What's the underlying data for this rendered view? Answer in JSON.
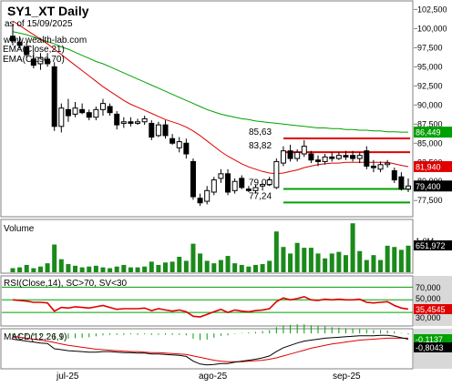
{
  "header": {
    "title": "SY1_XT Daily",
    "date_line": "as of 15/09/2025",
    "watermark": "www.wealth-lab.com",
    "ema21_label": "EMA(Close,21)",
    "ema70_label": "EMA(Close,70)"
  },
  "price_axis": {
    "ticks": [
      "102,500",
      "100,000",
      "97,500",
      "95,000",
      "92,500",
      "90,000",
      "87,500",
      "85,000",
      "82,500",
      "80,000",
      "77,500"
    ],
    "ylim": [
      75.5,
      103.5
    ],
    "badges": [
      {
        "key": "ema70",
        "label": "86,449",
        "value": 86.449,
        "color": "#00a000"
      },
      {
        "key": "ema21",
        "label": "81,940",
        "value": 81.94,
        "color": "#e00000"
      },
      {
        "key": "close",
        "label": "79,400",
        "value": 79.4,
        "color": "#000000"
      }
    ]
  },
  "levels": [
    {
      "label": "85,63",
      "value": 85.63,
      "color": "#e00000"
    },
    {
      "label": "83,82",
      "value": 83.82,
      "color": "#e00000"
    },
    {
      "label": "79,02",
      "value": 79.02,
      "color": "#00a000"
    },
    {
      "label": "77,24",
      "value": 77.24,
      "color": "#00a000"
    }
  ],
  "volume_panel": {
    "title": "Volume",
    "tick": "1,0M",
    "badge": "651,972"
  },
  "rsi_panel": {
    "title": "RSI(Close,14), SC>70, SV<30",
    "ticks": [
      "70,000",
      "50,000",
      "30,000"
    ],
    "badge": "35,4545"
  },
  "macd_panel": {
    "title": "MACD(12,26,9)",
    "badge1": "-0,1137",
    "badge2": "-0,8043"
  },
  "x_axis": {
    "labels": [
      "jul-25",
      "ago-25",
      "sep-25"
    ]
  },
  "colors": {
    "up": "#00a000",
    "down": "#e00000",
    "candle": "#000000",
    "volume": "#1a8a1a",
    "panel_border": "#808080",
    "badge_bg": "#000000"
  },
  "chart_data": {
    "type": "candlestick",
    "title": "SY1_XT Daily",
    "x_labels": [
      "jul-25",
      "ago-25",
      "sep-25"
    ],
    "ylim": [
      75.5,
      103.5
    ],
    "candles": [
      {
        "o": 99.0,
        "h": 100.5,
        "l": 97.8,
        "c": 98.4
      },
      {
        "o": 98.2,
        "h": 99.0,
        "l": 97.4,
        "c": 97.8
      },
      {
        "o": 97.6,
        "h": 98.2,
        "l": 96.2,
        "c": 96.6
      },
      {
        "o": 96.0,
        "h": 97.0,
        "l": 94.8,
        "c": 95.2
      },
      {
        "o": 95.4,
        "h": 96.8,
        "l": 94.6,
        "c": 96.2
      },
      {
        "o": 96.0,
        "h": 96.8,
        "l": 95.0,
        "c": 95.4
      },
      {
        "o": 95.0,
        "h": 95.6,
        "l": 86.6,
        "c": 87.2
      },
      {
        "o": 87.2,
        "h": 90.2,
        "l": 86.4,
        "c": 89.6
      },
      {
        "o": 89.4,
        "h": 90.8,
        "l": 87.8,
        "c": 88.6
      },
      {
        "o": 88.8,
        "h": 90.4,
        "l": 88.4,
        "c": 89.6
      },
      {
        "o": 89.4,
        "h": 90.2,
        "l": 88.8,
        "c": 89.0
      },
      {
        "o": 89.0,
        "h": 89.4,
        "l": 88.0,
        "c": 88.4
      },
      {
        "o": 88.4,
        "h": 89.8,
        "l": 88.0,
        "c": 89.4
      },
      {
        "o": 89.4,
        "h": 90.8,
        "l": 88.6,
        "c": 90.2
      },
      {
        "o": 89.8,
        "h": 90.2,
        "l": 88.6,
        "c": 89.0
      },
      {
        "o": 88.8,
        "h": 89.2,
        "l": 86.8,
        "c": 87.4
      },
      {
        "o": 87.6,
        "h": 88.4,
        "l": 87.0,
        "c": 87.8
      },
      {
        "o": 87.8,
        "h": 88.4,
        "l": 87.2,
        "c": 87.6
      },
      {
        "o": 87.6,
        "h": 88.2,
        "l": 87.4,
        "c": 87.8
      },
      {
        "o": 87.8,
        "h": 88.6,
        "l": 87.4,
        "c": 88.2
      },
      {
        "o": 87.6,
        "h": 88.0,
        "l": 85.4,
        "c": 85.8
      },
      {
        "o": 86.0,
        "h": 87.8,
        "l": 85.8,
        "c": 87.4
      },
      {
        "o": 87.4,
        "h": 88.0,
        "l": 85.6,
        "c": 86.0
      },
      {
        "o": 85.6,
        "h": 86.2,
        "l": 84.8,
        "c": 85.0
      },
      {
        "o": 84.4,
        "h": 85.8,
        "l": 83.8,
        "c": 85.2
      },
      {
        "o": 85.0,
        "h": 85.6,
        "l": 83.0,
        "c": 83.6
      },
      {
        "o": 82.6,
        "h": 83.0,
        "l": 77.6,
        "c": 78.0
      },
      {
        "o": 77.8,
        "h": 78.4,
        "l": 76.8,
        "c": 77.2
      },
      {
        "o": 77.4,
        "h": 79.4,
        "l": 77.0,
        "c": 78.8
      },
      {
        "o": 78.6,
        "h": 80.6,
        "l": 78.2,
        "c": 80.2
      },
      {
        "o": 80.4,
        "h": 81.6,
        "l": 79.8,
        "c": 81.0
      },
      {
        "o": 81.0,
        "h": 81.6,
        "l": 78.2,
        "c": 78.6
      },
      {
        "o": 78.8,
        "h": 80.4,
        "l": 78.4,
        "c": 80.0
      },
      {
        "o": 80.4,
        "h": 80.8,
        "l": 79.0,
        "c": 79.2
      },
      {
        "o": 79.0,
        "h": 79.4,
        "l": 78.6,
        "c": 78.8
      },
      {
        "o": 78.8,
        "h": 79.6,
        "l": 78.4,
        "c": 79.2
      },
      {
        "o": 79.4,
        "h": 79.8,
        "l": 78.8,
        "c": 79.6
      },
      {
        "o": 79.6,
        "h": 80.6,
        "l": 79.4,
        "c": 80.2
      },
      {
        "o": 79.2,
        "h": 83.0,
        "l": 79.0,
        "c": 82.6
      },
      {
        "o": 82.4,
        "h": 84.6,
        "l": 82.0,
        "c": 84.0
      },
      {
        "o": 84.0,
        "h": 84.8,
        "l": 82.6,
        "c": 83.0
      },
      {
        "o": 83.0,
        "h": 84.2,
        "l": 82.6,
        "c": 83.8
      },
      {
        "o": 83.6,
        "h": 85.4,
        "l": 83.2,
        "c": 84.6
      },
      {
        "o": 83.6,
        "h": 84.0,
        "l": 82.4,
        "c": 82.8
      },
      {
        "o": 82.8,
        "h": 83.4,
        "l": 82.0,
        "c": 82.6
      },
      {
        "o": 82.6,
        "h": 83.6,
        "l": 82.2,
        "c": 83.2
      },
      {
        "o": 83.2,
        "h": 83.8,
        "l": 82.6,
        "c": 83.0
      },
      {
        "o": 83.0,
        "h": 83.8,
        "l": 82.8,
        "c": 83.4
      },
      {
        "o": 83.4,
        "h": 84.0,
        "l": 82.8,
        "c": 83.2
      },
      {
        "o": 83.4,
        "h": 84.0,
        "l": 82.6,
        "c": 83.0
      },
      {
        "o": 83.0,
        "h": 83.8,
        "l": 82.4,
        "c": 83.4
      },
      {
        "o": 84.0,
        "h": 84.6,
        "l": 81.6,
        "c": 82.0
      },
      {
        "o": 82.0,
        "h": 82.8,
        "l": 81.2,
        "c": 81.8
      },
      {
        "o": 81.6,
        "h": 82.6,
        "l": 81.2,
        "c": 82.2
      },
      {
        "o": 82.2,
        "h": 82.8,
        "l": 81.8,
        "c": 82.4
      },
      {
        "o": 81.4,
        "h": 81.8,
        "l": 79.8,
        "c": 80.2
      },
      {
        "o": 80.6,
        "h": 81.2,
        "l": 78.8,
        "c": 79.0
      },
      {
        "o": 79.0,
        "h": 80.4,
        "l": 78.6,
        "c": 79.4
      }
    ],
    "ema21": [
      101.0,
      100.4,
      99.8,
      99.2,
      98.6,
      98.0,
      97.3,
      96.6,
      95.9,
      95.2,
      94.5,
      93.8,
      93.1,
      92.4,
      91.8,
      91.2,
      90.6,
      90.1,
      89.7,
      89.3,
      88.9,
      88.5,
      88.1,
      87.8,
      87.5,
      87.1,
      86.6,
      86.0,
      85.3,
      84.6,
      83.9,
      83.3,
      82.8,
      82.3,
      81.9,
      81.6,
      81.3,
      81.1,
      81.0,
      81.1,
      81.3,
      81.5,
      81.8,
      82.0,
      82.2,
      82.3,
      82.4,
      82.4,
      82.5,
      82.5,
      82.5,
      82.5,
      82.5,
      82.5,
      82.5,
      82.3,
      82.1,
      81.94
    ],
    "ema70": [
      99.6,
      99.4,
      99.2,
      98.9,
      98.6,
      98.3,
      98.0,
      97.6,
      97.3,
      96.9,
      96.5,
      96.1,
      95.7,
      95.4,
      95.0,
      94.6,
      94.2,
      93.8,
      93.4,
      93.0,
      92.6,
      92.2,
      91.8,
      91.4,
      91.0,
      90.6,
      90.2,
      89.8,
      89.4,
      89.1,
      88.8,
      88.6,
      88.4,
      88.2,
      88.1,
      87.9,
      87.8,
      87.7,
      87.6,
      87.5,
      87.4,
      87.3,
      87.2,
      87.1,
      87.0,
      87.0,
      86.9,
      86.9,
      86.8,
      86.8,
      86.7,
      86.7,
      86.6,
      86.6,
      86.5,
      86.5,
      86.45,
      86.449
    ],
    "volume": [
      0.1,
      0.12,
      0.18,
      0.1,
      0.14,
      0.22,
      0.68,
      0.32,
      0.2,
      0.16,
      0.12,
      0.14,
      0.16,
      0.12,
      0.1,
      0.14,
      0.18,
      0.12,
      0.12,
      0.14,
      0.26,
      0.18,
      0.24,
      0.26,
      0.38,
      0.28,
      0.7,
      0.46,
      0.28,
      0.22,
      0.3,
      0.4,
      0.22,
      0.18,
      0.14,
      0.18,
      0.2,
      0.28,
      1.0,
      0.62,
      0.46,
      0.72,
      0.6,
      0.6,
      0.46,
      0.34,
      0.46,
      0.5,
      0.42,
      1.2,
      0.52,
      0.3,
      0.42,
      0.3,
      0.65,
      0.62,
      0.55,
      0.651972
    ],
    "rsi": [
      50,
      49,
      48,
      46,
      46,
      45,
      32,
      38,
      37,
      39,
      38,
      37,
      39,
      41,
      38,
      35,
      36,
      36,
      36,
      37,
      33,
      36,
      34,
      32,
      34,
      31,
      24,
      23,
      27,
      31,
      35,
      30,
      34,
      32,
      31,
      33,
      34,
      36,
      47,
      53,
      50,
      52,
      55,
      50,
      49,
      51,
      50,
      51,
      50,
      50,
      51,
      46,
      45,
      46,
      47,
      41,
      37,
      35.45
    ],
    "macd": [
      -0.6,
      -0.7,
      -0.8,
      -0.9,
      -1.0,
      -1.05,
      -1.6,
      -1.7,
      -1.8,
      -1.85,
      -1.9,
      -1.95,
      -1.95,
      -1.9,
      -1.9,
      -1.95,
      -2.0,
      -2.0,
      -2.05,
      -2.05,
      -2.15,
      -2.15,
      -2.2,
      -2.25,
      -2.3,
      -2.4,
      -2.9,
      -3.2,
      -3.3,
      -3.25,
      -3.15,
      -3.15,
      -3.0,
      -2.9,
      -2.8,
      -2.7,
      -2.55,
      -2.35,
      -1.9,
      -1.5,
      -1.25,
      -1.0,
      -0.8,
      -0.7,
      -0.6,
      -0.5,
      -0.45,
      -0.4,
      -0.35,
      -0.3,
      -0.25,
      -0.25,
      -0.25,
      -0.2,
      -0.2,
      -0.3,
      -0.45,
      -0.6
    ],
    "macd_signal": [
      -0.3,
      -0.4,
      -0.5,
      -0.6,
      -0.7,
      -0.8,
      -0.95,
      -1.1,
      -1.25,
      -1.35,
      -1.45,
      -1.55,
      -1.65,
      -1.7,
      -1.75,
      -1.8,
      -1.85,
      -1.9,
      -1.9,
      -1.95,
      -2.0,
      -2.0,
      -2.05,
      -2.1,
      -2.15,
      -2.2,
      -2.35,
      -2.5,
      -2.65,
      -2.8,
      -2.9,
      -2.95,
      -2.95,
      -2.95,
      -2.9,
      -2.85,
      -2.8,
      -2.7,
      -2.55,
      -2.35,
      -2.15,
      -1.95,
      -1.75,
      -1.55,
      -1.4,
      -1.25,
      -1.1,
      -1.0,
      -0.9,
      -0.8,
      -0.7,
      -0.65,
      -0.6,
      -0.55,
      -0.5,
      -0.5,
      -0.5,
      -0.5
    ]
  }
}
